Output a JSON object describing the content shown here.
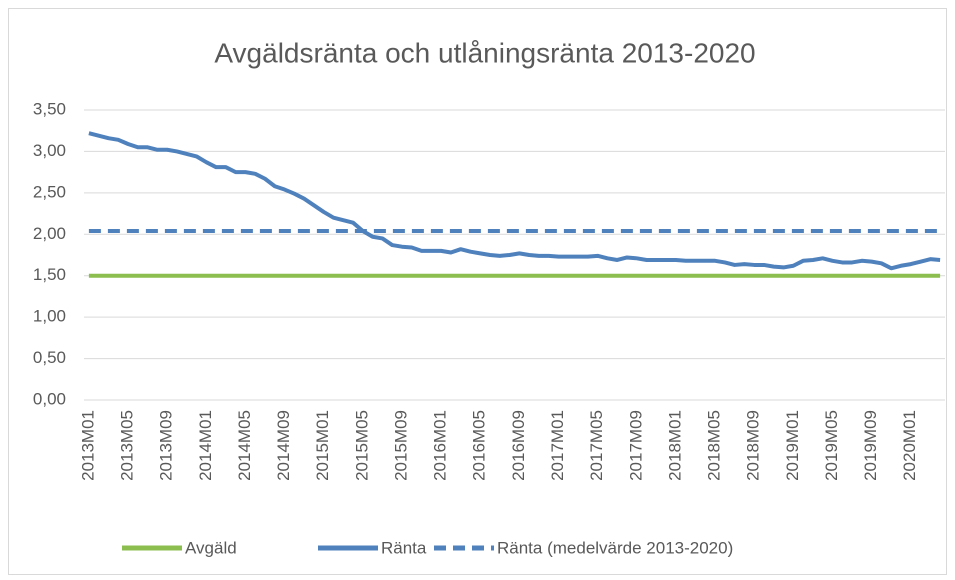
{
  "chart_data": {
    "type": "line",
    "title": "Avgäldsränta och utlåningsränta 2013-2020",
    "categories": [
      "2013M01",
      null,
      null,
      null,
      "2013M05",
      null,
      null,
      null,
      "2013M09",
      null,
      null,
      null,
      "2014M01",
      null,
      null,
      null,
      "2014M05",
      null,
      null,
      null,
      "2014M09",
      null,
      null,
      null,
      "2015M01",
      null,
      null,
      null,
      "2015M05",
      null,
      null,
      null,
      "2015M09",
      null,
      null,
      null,
      "2016M01",
      null,
      null,
      null,
      "2016M05",
      null,
      null,
      null,
      "2016M09",
      null,
      null,
      null,
      "2017M01",
      null,
      null,
      null,
      "2017M05",
      null,
      null,
      null,
      "2017M09",
      null,
      null,
      null,
      "2018M01",
      null,
      null,
      null,
      "2018M05",
      null,
      null,
      null,
      "2018M09",
      null,
      null,
      null,
      "2019M01",
      null,
      null,
      null,
      "2019M05",
      null,
      null,
      null,
      "2019M09",
      null,
      null,
      null,
      "2020M01",
      null,
      null,
      null
    ],
    "series": [
      {
        "name": "Avgäld",
        "color": "#8cbd4f",
        "dash": false,
        "values": [
          1.5,
          1.5,
          1.5,
          1.5,
          1.5,
          1.5,
          1.5,
          1.5,
          1.5,
          1.5,
          1.5,
          1.5,
          1.5,
          1.5,
          1.5,
          1.5,
          1.5,
          1.5,
          1.5,
          1.5,
          1.5,
          1.5,
          1.5,
          1.5,
          1.5,
          1.5,
          1.5,
          1.5,
          1.5,
          1.5,
          1.5,
          1.5,
          1.5,
          1.5,
          1.5,
          1.5,
          1.5,
          1.5,
          1.5,
          1.5,
          1.5,
          1.5,
          1.5,
          1.5,
          1.5,
          1.5,
          1.5,
          1.5,
          1.5,
          1.5,
          1.5,
          1.5,
          1.5,
          1.5,
          1.5,
          1.5,
          1.5,
          1.5,
          1.5,
          1.5,
          1.5,
          1.5,
          1.5,
          1.5,
          1.5,
          1.5,
          1.5,
          1.5,
          1.5,
          1.5,
          1.5,
          1.5,
          1.5,
          1.5,
          1.5,
          1.5,
          1.5,
          1.5,
          1.5,
          1.5,
          1.5,
          1.5,
          1.5,
          1.5,
          1.5,
          1.5,
          1.5,
          1.5
        ]
      },
      {
        "name": "Ränta",
        "color": "#4f81bd",
        "dash": false,
        "values": [
          3.22,
          3.19,
          3.16,
          3.14,
          3.09,
          3.05,
          3.05,
          3.02,
          3.02,
          3.0,
          2.97,
          2.94,
          2.87,
          2.81,
          2.81,
          2.75,
          2.75,
          2.73,
          2.67,
          2.58,
          2.54,
          2.49,
          2.43,
          2.35,
          2.27,
          2.2,
          2.17,
          2.14,
          2.04,
          1.97,
          1.95,
          1.87,
          1.85,
          1.84,
          1.8,
          1.8,
          1.8,
          1.78,
          1.82,
          1.79,
          1.77,
          1.75,
          1.74,
          1.75,
          1.77,
          1.75,
          1.74,
          1.74,
          1.73,
          1.73,
          1.73,
          1.73,
          1.74,
          1.71,
          1.69,
          1.72,
          1.71,
          1.69,
          1.69,
          1.69,
          1.69,
          1.68,
          1.68,
          1.68,
          1.68,
          1.66,
          1.63,
          1.64,
          1.63,
          1.63,
          1.61,
          1.6,
          1.62,
          1.68,
          1.69,
          1.71,
          1.68,
          1.66,
          1.66,
          1.68,
          1.67,
          1.65,
          1.59,
          1.62,
          1.64,
          1.67,
          1.7,
          1.69
        ]
      },
      {
        "name": "Ränta (medelvärde 2013-2020)",
        "color": "#4f81bd",
        "dash": true,
        "values": [
          2.04,
          2.04,
          2.04,
          2.04,
          2.04,
          2.04,
          2.04,
          2.04,
          2.04,
          2.04,
          2.04,
          2.04,
          2.04,
          2.04,
          2.04,
          2.04,
          2.04,
          2.04,
          2.04,
          2.04,
          2.04,
          2.04,
          2.04,
          2.04,
          2.04,
          2.04,
          2.04,
          2.04,
          2.04,
          2.04,
          2.04,
          2.04,
          2.04,
          2.04,
          2.04,
          2.04,
          2.04,
          2.04,
          2.04,
          2.04,
          2.04,
          2.04,
          2.04,
          2.04,
          2.04,
          2.04,
          2.04,
          2.04,
          2.04,
          2.04,
          2.04,
          2.04,
          2.04,
          2.04,
          2.04,
          2.04,
          2.04,
          2.04,
          2.04,
          2.04,
          2.04,
          2.04,
          2.04,
          2.04,
          2.04,
          2.04,
          2.04,
          2.04,
          2.04,
          2.04,
          2.04,
          2.04,
          2.04,
          2.04,
          2.04,
          2.04,
          2.04,
          2.04,
          2.04,
          2.04,
          2.04,
          2.04,
          2.04,
          2.04,
          2.04,
          2.04,
          2.04,
          2.04
        ]
      }
    ],
    "ylim": [
      0,
      3.5
    ],
    "yticks": [
      {
        "value": 0,
        "label": "0,00"
      },
      {
        "value": 0.5,
        "label": "0,50"
      },
      {
        "value": 1,
        "label": "1,00"
      },
      {
        "value": 1.5,
        "label": "1,50"
      },
      {
        "value": 2,
        "label": "2,00"
      },
      {
        "value": 2.5,
        "label": "2,50"
      },
      {
        "value": 3,
        "label": "3,00"
      },
      {
        "value": 3.5,
        "label": "3,50"
      }
    ],
    "grid": true,
    "legend": "bottom"
  }
}
